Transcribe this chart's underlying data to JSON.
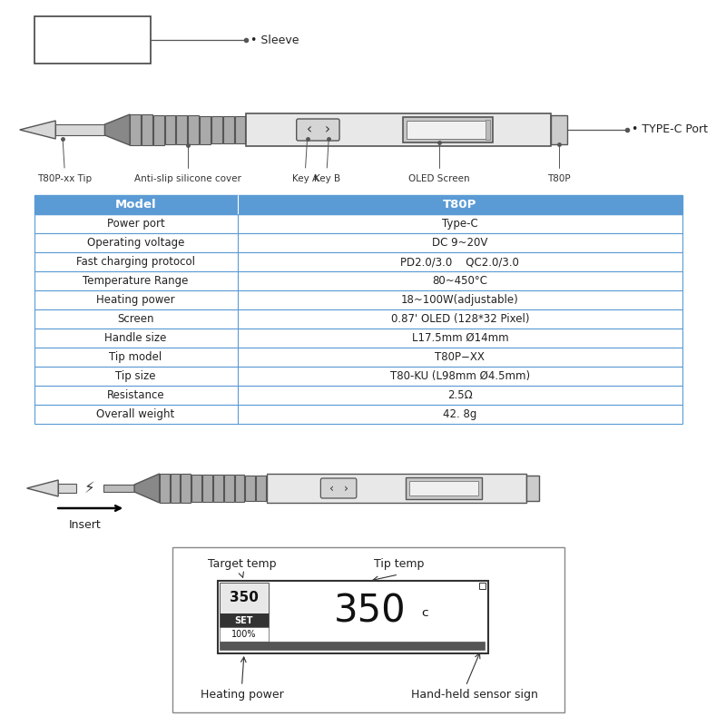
{
  "bg_color": "white",
  "table_header_bg": "#5b9bd5",
  "table_header_fg": "white",
  "table_border": "#5b9bd5",
  "table_rows": [
    [
      "Model",
      "T80P"
    ],
    [
      "Power port",
      "Type-C"
    ],
    [
      "Operating voltage",
      "DC 9~20V"
    ],
    [
      "Fast charging protocol",
      "PD2.0/3.0    QC2.0/3.0"
    ],
    [
      "Temperature Range",
      "80~450°C"
    ],
    [
      "Heating power",
      "18~100W(adjustable)"
    ],
    [
      "Screen",
      "0.87' OLED (128*32 Pixel)"
    ],
    [
      "Handle size",
      "L17.5mm Ø14mm"
    ],
    [
      "Tip model",
      "T80P−XX"
    ],
    [
      "Tip size",
      "T80-KU (L98mm Ø4.5mm)"
    ],
    [
      "Resistance",
      "2.5Ω"
    ],
    [
      "Overall weight",
      "42. 8g"
    ]
  ],
  "sleeve_label": "Sleeve",
  "type_c_label": "TYPE-C Port",
  "part_labels": [
    "T80P-xx Tip",
    "Anti-slip silicone cover",
    "Key A",
    "Key B",
    "OLED Screen",
    "T80P"
  ],
  "insert_label": "Insert",
  "display_labels": {
    "target_temp": "Target temp",
    "tip_temp": "Tip temp",
    "heating_power": "Heating power",
    "hand_held": "Hand-held sensor sign"
  }
}
